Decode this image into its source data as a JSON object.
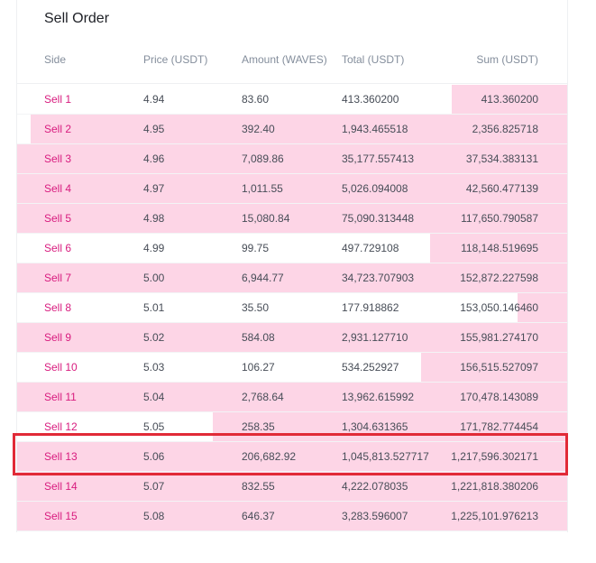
{
  "title": "Sell Order",
  "columns": {
    "side": "Side",
    "price": "Price (USDT)",
    "amount": "Amount (WAVES)",
    "total": "Total (USDT)",
    "sum": "Sum (USDT)"
  },
  "rows": [
    {
      "side": "Sell 1",
      "price": "4.94",
      "amount": "83.60",
      "total": "413.360200",
      "sum": "413.360200",
      "depth": 0.21
    },
    {
      "side": "Sell 2",
      "price": "4.95",
      "amount": "392.40",
      "total": "1,943.465518",
      "sum": "2,356.825718",
      "depth": 0.975
    },
    {
      "side": "Sell 3",
      "price": "4.96",
      "amount": "7,089.86",
      "total": "35,177.557413",
      "sum": "37,534.383131",
      "depth": 1.0
    },
    {
      "side": "Sell 4",
      "price": "4.97",
      "amount": "1,011.55",
      "total": "5,026.094008",
      "sum": "42,560.477139",
      "depth": 1.0
    },
    {
      "side": "Sell 5",
      "price": "4.98",
      "amount": "15,080.84",
      "total": "75,090.313448",
      "sum": "117,650.790587",
      "depth": 1.0
    },
    {
      "side": "Sell 6",
      "price": "4.99",
      "amount": "99.75",
      "total": "497.729108",
      "sum": "118,148.519695",
      "depth": 0.25
    },
    {
      "side": "Sell 7",
      "price": "5.00",
      "amount": "6,944.77",
      "total": "34,723.707903",
      "sum": "152,872.227598",
      "depth": 1.0
    },
    {
      "side": "Sell 8",
      "price": "5.01",
      "amount": "35.50",
      "total": "177.918862",
      "sum": "153,050.146460",
      "depth": 0.09
    },
    {
      "side": "Sell 9",
      "price": "5.02",
      "amount": "584.08",
      "total": "2,931.127710",
      "sum": "155,981.274170",
      "depth": 1.0
    },
    {
      "side": "Sell 10",
      "price": "5.03",
      "amount": "106.27",
      "total": "534.252927",
      "sum": "156,515.527097",
      "depth": 0.265
    },
    {
      "side": "Sell 11",
      "price": "5.04",
      "amount": "2,768.64",
      "total": "13,962.615992",
      "sum": "170,478.143089",
      "depth": 1.0
    },
    {
      "side": "Sell 12",
      "price": "5.05",
      "amount": "258.35",
      "total": "1,304.631365",
      "sum": "171,782.774454",
      "depth": 0.645
    },
    {
      "side": "Sell 13",
      "price": "5.06",
      "amount": "206,682.92",
      "total": "1,045,813.527717",
      "sum": "1,217,596.302171",
      "depth": 1.0
    },
    {
      "side": "Sell 14",
      "price": "5.07",
      "amount": "832.55",
      "total": "4,222.078035",
      "sum": "1,221,818.380206",
      "depth": 1.0
    },
    {
      "side": "Sell 15",
      "price": "5.08",
      "amount": "646.37",
      "total": "3,283.596007",
      "sum": "1,225,101.976213",
      "depth": 1.0
    }
  ],
  "highlighted_row": "Sell 13",
  "colors": {
    "depth_fill": "#fdd5e6",
    "sell_text": "#d81b7e",
    "highlight_border": "#e12a37"
  }
}
